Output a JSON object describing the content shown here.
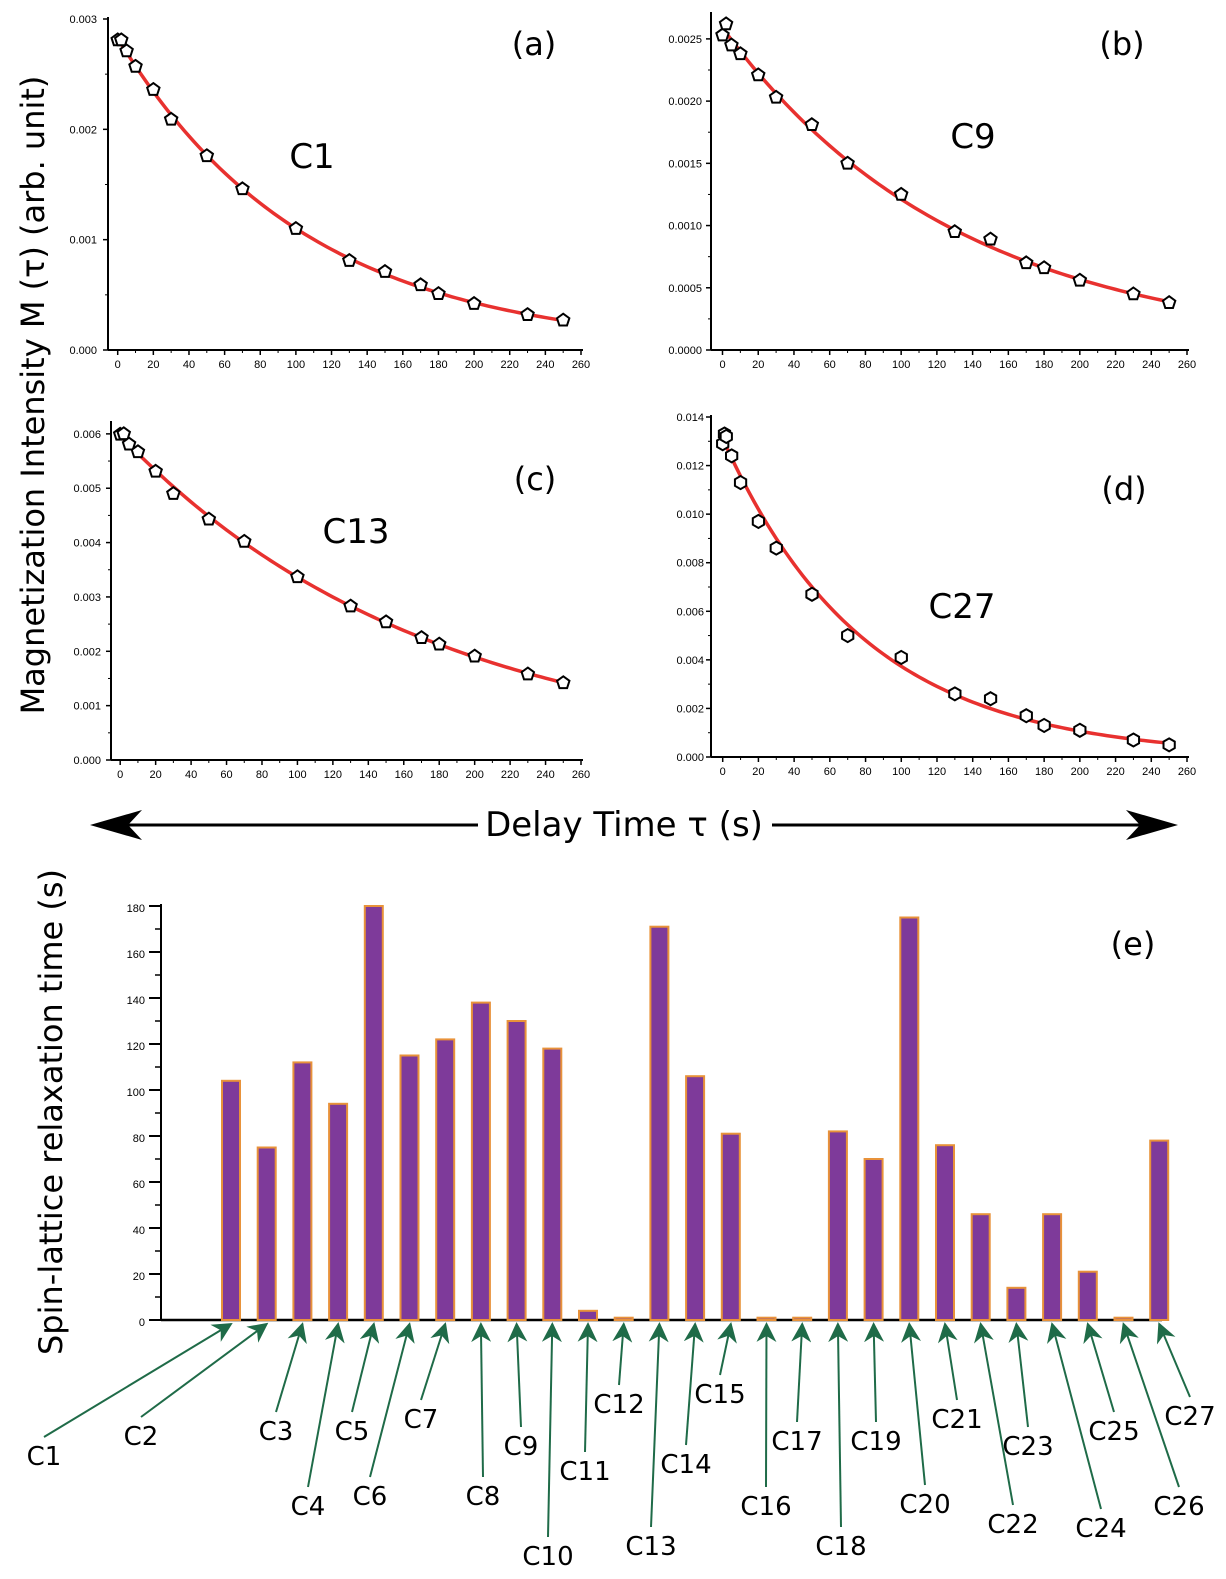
{
  "figure": {
    "shared_ylabel": "Magnetization Intensity M (τ) (arb. unit)",
    "shared_xlabel": "Delay Time τ (s)"
  },
  "colors": {
    "fit": "#e8312f",
    "bar_fill": "#7e3a9a",
    "bar_edge": "#e8923a",
    "arrow": "#1f6b48",
    "marker": "#000000"
  },
  "chart_data": [
    {
      "panel": "(a)",
      "type": "scatter",
      "annotation": "C1",
      "fit_line": true,
      "marker": "pentagon",
      "xlim": [
        0,
        260
      ],
      "ylim": [
        0,
        0.003
      ],
      "xticks": [
        "0",
        "20",
        "40",
        "60",
        "80",
        "100",
        "120",
        "140",
        "160",
        "180",
        "200",
        "220",
        "240",
        "260"
      ],
      "yticks": [
        "0.000",
        "0.001",
        "0.002",
        "0.003"
      ],
      "x": [
        0,
        2,
        5,
        10,
        20,
        30,
        50,
        70,
        100,
        130,
        150,
        170,
        180,
        200,
        230,
        250
      ],
      "y": [
        0.00281,
        0.00281,
        0.00271,
        0.00257,
        0.00236,
        0.00209,
        0.00176,
        0.00146,
        0.0011,
        0.00081,
        0.00071,
        0.00059,
        0.00051,
        0.00042,
        0.00032,
        0.00027
      ]
    },
    {
      "panel": "(b)",
      "type": "scatter",
      "annotation": "C9",
      "fit_line": true,
      "marker": "pentagon",
      "xlim": [
        0,
        260
      ],
      "ylim": [
        0,
        0.0027
      ],
      "xticks": [
        "0",
        "20",
        "40",
        "60",
        "80",
        "100",
        "120",
        "140",
        "160",
        "180",
        "200",
        "220",
        "240",
        "260"
      ],
      "yticks": [
        "0.0000",
        "0.0005",
        "0.0010",
        "0.0015",
        "0.0020",
        "0.0025"
      ],
      "x": [
        0,
        2,
        5,
        10,
        20,
        30,
        50,
        70,
        100,
        130,
        150,
        170,
        180,
        200,
        230,
        250
      ],
      "y": [
        0.00253,
        0.00262,
        0.00245,
        0.00238,
        0.00221,
        0.00203,
        0.00181,
        0.0015,
        0.00125,
        0.00095,
        0.00089,
        0.0007,
        0.00066,
        0.00056,
        0.00045,
        0.00038
      ]
    },
    {
      "panel": "(c)",
      "type": "scatter",
      "annotation": "C13",
      "fit_line": true,
      "marker": "pentagon",
      "xlim": [
        -5,
        260
      ],
      "ylim": [
        0,
        0.0062
      ],
      "xticks": [
        "0",
        "20",
        "40",
        "60",
        "80",
        "100",
        "120",
        "140",
        "160",
        "180",
        "200",
        "220",
        "240",
        "260"
      ],
      "yticks": [
        "0.000",
        "0.001",
        "0.002",
        "0.003",
        "0.004",
        "0.005",
        "0.006"
      ],
      "x": [
        0,
        2,
        5,
        10,
        20,
        30,
        50,
        70,
        100,
        130,
        150,
        170,
        180,
        200,
        230,
        250
      ],
      "y": [
        0.00599,
        0.006,
        0.00581,
        0.00567,
        0.00531,
        0.0049,
        0.00443,
        0.00402,
        0.00337,
        0.00283,
        0.00254,
        0.00225,
        0.00213,
        0.00191,
        0.00158,
        0.00142
      ]
    },
    {
      "panel": "(d)",
      "type": "scatter",
      "annotation": "C27",
      "fit_line": true,
      "marker": "hexagon",
      "xlim": [
        0,
        260
      ],
      "ylim": [
        0,
        0.014
      ],
      "xticks": [
        "0",
        "20",
        "40",
        "60",
        "80",
        "100",
        "120",
        "140",
        "160",
        "180",
        "200",
        "220",
        "240",
        "260"
      ],
      "yticks": [
        "0.000",
        "0.002",
        "0.004",
        "0.006",
        "0.008",
        "0.010",
        "0.012",
        "0.014"
      ],
      "x": [
        0,
        1,
        2,
        5,
        10,
        20,
        30,
        50,
        70,
        100,
        130,
        150,
        170,
        180,
        200,
        230,
        250
      ],
      "y": [
        0.0129,
        0.0133,
        0.0132,
        0.0124,
        0.0113,
        0.0097,
        0.0086,
        0.0067,
        0.005,
        0.0041,
        0.0026,
        0.0024,
        0.0017,
        0.0013,
        0.0011,
        0.0007,
        0.0005
      ]
    },
    {
      "panel": "(e)",
      "type": "bar",
      "ylabel": "Spin-lattice relaxation time (s)",
      "ylim": [
        0,
        180
      ],
      "yticks": [
        "0",
        "20",
        "40",
        "60",
        "80",
        "100",
        "120",
        "140",
        "160",
        "180"
      ],
      "categories": [
        "C1",
        "C2",
        "C3",
        "C4",
        "C5",
        "C6",
        "C7",
        "C8",
        "C9",
        "C10",
        "C11",
        "C12",
        "C13",
        "C14",
        "C15",
        "C16",
        "C17",
        "C18",
        "C19",
        "C20",
        "C21",
        "C22",
        "C23",
        "C24",
        "C25",
        "C26",
        "C27"
      ],
      "values": [
        104,
        75,
        112,
        94,
        180,
        115,
        122,
        138,
        130,
        118,
        4,
        1,
        171,
        106,
        81,
        1,
        1,
        82,
        70,
        175,
        76,
        46,
        14,
        46,
        21,
        1,
        78
      ]
    }
  ]
}
